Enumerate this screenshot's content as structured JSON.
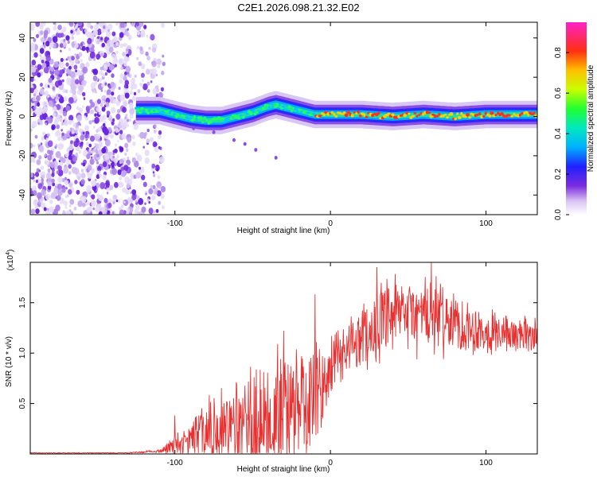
{
  "title": "C2E1.2026.098.21.32.E02",
  "chart_data": [
    {
      "type": "heatmap",
      "name": "spectrogram",
      "xlabel": "Height of straight line (km)",
      "ylabel": "Frequency (Hz)",
      "xlim": [
        -193,
        133
      ],
      "ylim": [
        -50,
        48
      ],
      "xticks": [
        -100,
        0,
        100
      ],
      "yticks": [
        -40,
        -20,
        0,
        20,
        40
      ],
      "noise_region": {
        "x_start": -193,
        "x_end": -113
      },
      "signal_ridge": {
        "x": [
          -125,
          -110,
          -100,
          -90,
          -80,
          -70,
          -60,
          -50,
          -40,
          -35,
          -30,
          -25,
          -20,
          -15,
          -10,
          0,
          10,
          20,
          40,
          60,
          80,
          100,
          120,
          133
        ],
        "y": [
          3,
          3,
          1,
          -1,
          -2,
          -2,
          0,
          2,
          5,
          6,
          5,
          4,
          3,
          2,
          1,
          1,
          1,
          1,
          0,
          1,
          0,
          1,
          1,
          1
        ]
      },
      "colorbar": {
        "label": "Normalized spectral amplitude",
        "ticks": [
          "0.0",
          "0.2",
          "0.4",
          "0.6",
          "0.8"
        ],
        "range": [
          0,
          0.95
        ]
      }
    },
    {
      "type": "line",
      "name": "snr",
      "xlabel": "Height of straight line (km)",
      "ylabel": "SNR (10 * v/v)",
      "y_multiplier": "(x10^4)",
      "color": "#e83030",
      "xlim": [
        -193,
        133
      ],
      "ylim": [
        0,
        1.9
      ],
      "xticks": [
        -100,
        0,
        100
      ],
      "yticks": [
        0.5,
        1.0,
        1.5
      ],
      "envelope": {
        "x": [
          -193,
          -130,
          -110,
          -100,
          -90,
          -80,
          -70,
          -60,
          -50,
          -40,
          -30,
          -20,
          -10,
          -5,
          0,
          10,
          20,
          30,
          40,
          50,
          60,
          70,
          80,
          90,
          100,
          110,
          120,
          133
        ],
        "base": [
          0.01,
          0.01,
          0.03,
          0.08,
          0.15,
          0.2,
          0.25,
          0.3,
          0.35,
          0.4,
          0.45,
          0.48,
          0.52,
          0.6,
          0.85,
          1.05,
          1.18,
          1.25,
          1.35,
          1.38,
          1.38,
          1.35,
          1.3,
          1.25,
          1.22,
          1.2,
          1.18,
          1.18
        ],
        "amplitude": [
          0.005,
          0.005,
          0.02,
          0.12,
          0.18,
          0.35,
          0.35,
          0.45,
          0.55,
          0.65,
          0.65,
          0.65,
          0.6,
          0.55,
          0.3,
          0.3,
          0.35,
          0.4,
          0.4,
          0.42,
          0.42,
          0.4,
          0.35,
          0.3,
          0.25,
          0.22,
          0.2,
          0.2
        ]
      },
      "peaks": [
        [
          -100,
          0.38
        ],
        [
          -70,
          0.65
        ],
        [
          -30,
          1.22
        ],
        [
          -10,
          1.58
        ],
        [
          30,
          1.85
        ],
        [
          65,
          1.9
        ]
      ]
    }
  ]
}
